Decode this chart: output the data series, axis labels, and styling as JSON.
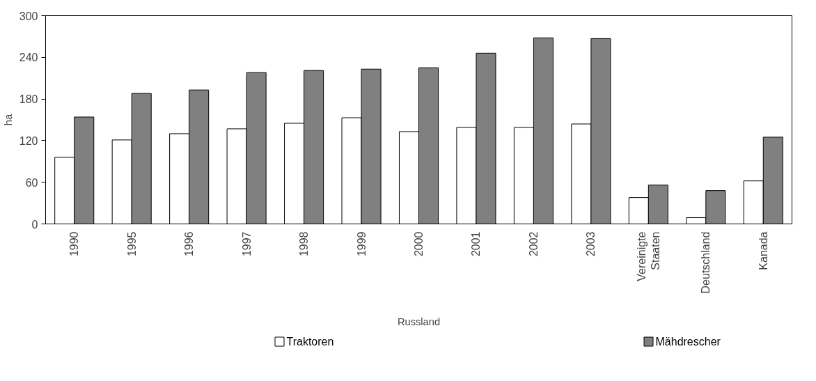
{
  "chart_data": {
    "type": "bar",
    "xlabel": "Russland",
    "ylabel": "ha",
    "categories": [
      "1990",
      "1995",
      "1996",
      "1997",
      "1998",
      "1999",
      "2000",
      "2001",
      "2002",
      "2003",
      "Vereinigte Staaten",
      "Deutschland",
      "Kanada"
    ],
    "series": [
      {
        "name": "Traktoren",
        "color": "#ffffff",
        "values": [
          96,
          121,
          130,
          137,
          145,
          153,
          133,
          139,
          139,
          144,
          38,
          9,
          62
        ]
      },
      {
        "name": "Mähdrescher",
        "color": "#808080",
        "values": [
          154,
          188,
          193,
          218,
          221,
          223,
          225,
          246,
          268,
          267,
          56,
          48,
          125
        ]
      }
    ],
    "ylim": [
      0,
      300
    ],
    "yticks": [
      0,
      60,
      120,
      180,
      240,
      300
    ],
    "grid": false,
    "legend": "bottom"
  }
}
